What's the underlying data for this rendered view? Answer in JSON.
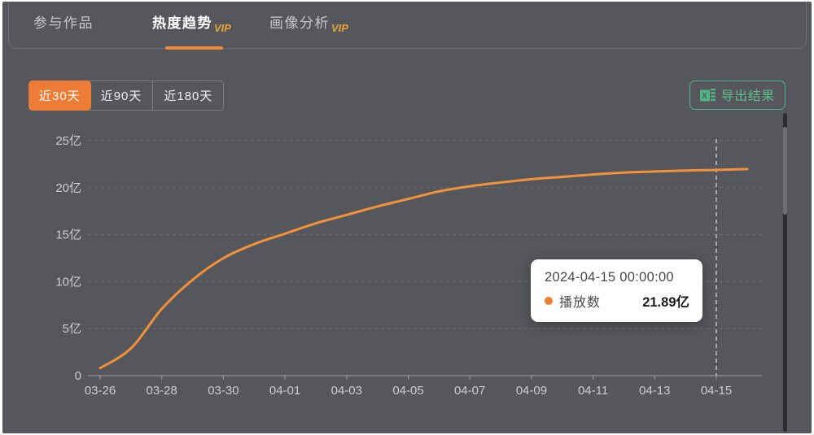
{
  "tabs": {
    "items": [
      {
        "label": "参与作品",
        "vip": "",
        "active": false
      },
      {
        "label": "热度趋势",
        "vip": "VIP",
        "active": true
      },
      {
        "label": "画像分析",
        "vip": "VIP",
        "active": false
      }
    ]
  },
  "toolbar": {
    "ranges": [
      {
        "label": "近30天",
        "active": true
      },
      {
        "label": "近90天",
        "active": false
      },
      {
        "label": "近180天",
        "active": false
      }
    ],
    "export_label": "导出结果"
  },
  "tooltip": {
    "title": "2024-04-15 00:00:00",
    "series": "播放数",
    "value": "21.89亿"
  },
  "colors": {
    "background": "#56575c",
    "accent_orange": "#ed7d36",
    "line_orange": "#f0923c",
    "vip_gold": "#e7a23c",
    "export_green": "#5fbd8b",
    "grid": "#7a7b81",
    "axis": "#9a9ca0",
    "axis_label": "#cbccce",
    "marker_line": "#e4e5e8",
    "tooltip_bg": "#ffffff"
  },
  "chart_data": {
    "type": "line",
    "title": "",
    "x": [
      "03-26",
      "03-27",
      "03-28",
      "03-29",
      "03-30",
      "03-31",
      "04-01",
      "04-02",
      "04-03",
      "04-04",
      "04-05",
      "04-06",
      "04-07",
      "04-08",
      "04-09",
      "04-10",
      "04-11",
      "04-12",
      "04-13",
      "04-14",
      "04-15",
      "04-16"
    ],
    "series": [
      {
        "name": "播放数",
        "values": [
          0.8,
          2.9,
          7.1,
          10.2,
          12.5,
          14.0,
          15.1,
          16.2,
          17.1,
          18.0,
          18.8,
          19.6,
          20.15,
          20.55,
          20.9,
          21.15,
          21.4,
          21.6,
          21.72,
          21.82,
          21.89,
          21.98
        ]
      }
    ],
    "unit": "亿",
    "ylim": [
      0,
      25
    ],
    "y_ticks": [
      {
        "value": 0,
        "label": "0"
      },
      {
        "value": 5,
        "label": "5亿"
      },
      {
        "value": 10,
        "label": "10亿"
      },
      {
        "value": 15,
        "label": "15亿"
      },
      {
        "value": 20,
        "label": "20亿"
      },
      {
        "value": 25,
        "label": "25亿"
      }
    ],
    "x_tick_labels": [
      "03-26",
      "03-28",
      "03-30",
      "04-01",
      "04-03",
      "04-05",
      "04-07",
      "04-09",
      "04-11",
      "04-13",
      "04-15"
    ],
    "x_tick_every": 2,
    "grid": "dashed-horizontal",
    "legend_position": "none",
    "marker_x": "04-15",
    "marker_value": 21.89
  }
}
